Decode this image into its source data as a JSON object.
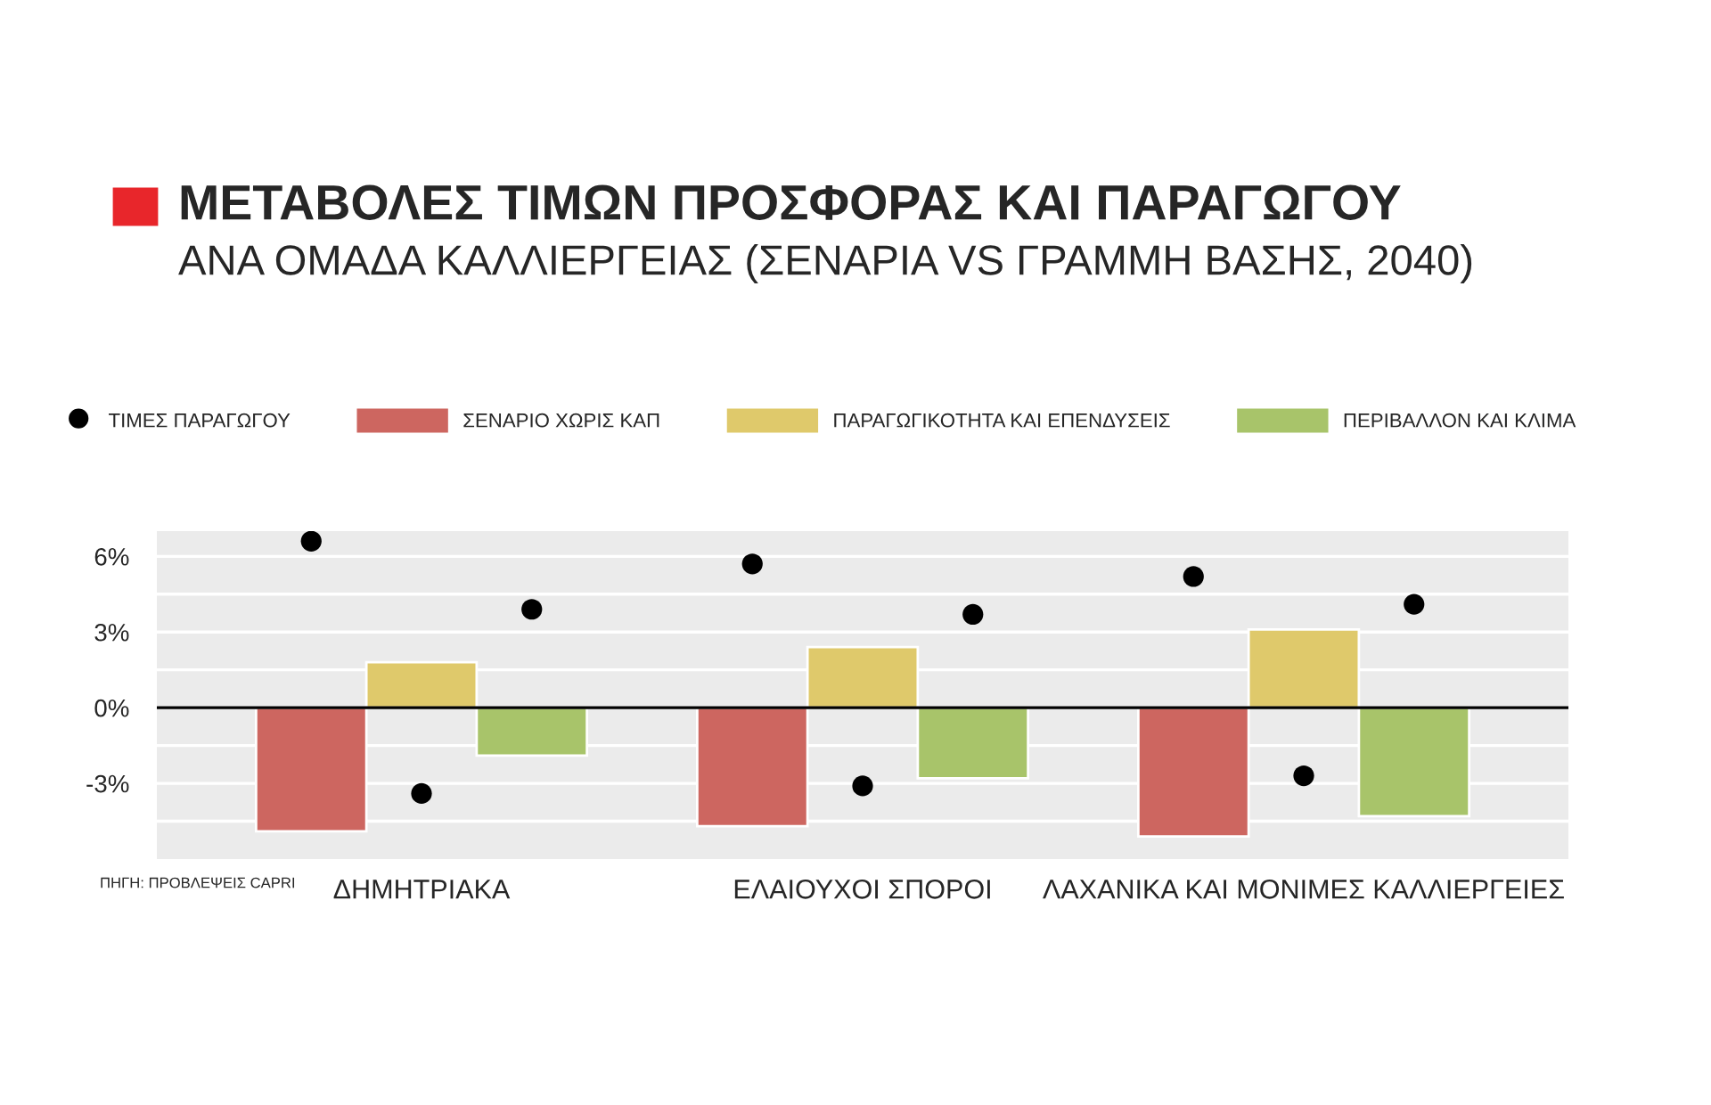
{
  "chart_data": {
    "type": "bar",
    "title": "ΜΕΤΑΒΟΛΕΣ ΤΙΜΩΝ ΠΡΟΣΦΟΡΑΣ ΚΑΙ ΠΑΡΑΓΩΓΟΥ",
    "subtitle": "ΑΝΑ ΟΜΑΔΑ ΚΑΛΛΙΕΡΓΕΙΑΣ (ΣΕΝΑΡΙΑ VS ΓΡΑΜΜΗ ΒΑΣΗΣ, 2040)",
    "categories": [
      "ΔΗΜΗΤΡΙΑΚΑ",
      "ΕΛΑΙΟΥΧΟΙ ΣΠΟΡΟΙ",
      "ΛΑΧΑΝΙΚΑ ΚΑΙ ΜΟΝΙΜΕΣ ΚΑΛΛΙΕΡΓΕΙΕΣ"
    ],
    "series": [
      {
        "name": "ΤΙΜΕΣ ΠΑΡΑΓΩΓΟΥ",
        "type": "scatter",
        "color": "#000000",
        "x": [
          "ΔΗΜΗΤΡΙΑΚΑ",
          "ΔΗΜΗΤΡΙΑΚΑ",
          "ΔΗΜΗΤΡΙΑΚΑ",
          "ΕΛΑΙΟΥΧΟΙ ΣΠΟΡΟΙ",
          "ΕΛΑΙΟΥΧΟΙ ΣΠΟΡΟΙ",
          "ΕΛΑΙΟΥΧΟΙ ΣΠΟΡΟΙ",
          "ΛΑΧΑΝΙΚΑ ΚΑΙ ΜΟΝΙΜΕΣ ΚΑΛΛΙΕΡΓΕΙΕΣ",
          "ΛΑΧΑΝΙΚΑ ΚΑΙ ΜΟΝΙΜΕΣ ΚΑΛΛΙΕΡΓΕΙΕΣ",
          "ΛΑΧΑΝΙΚΑ ΚΑΙ ΜΟΝΙΜΕΣ ΚΑΛΛΙΕΡΓΕΙΕΣ"
        ],
        "values": [
          6.6,
          -3.4,
          3.9,
          5.7,
          -3.1,
          3.7,
          5.2,
          -2.7,
          4.1
        ]
      },
      {
        "name": "ΣΕΝΑΡΙΟ ΧΩΡΙΣ ΚΑΠ",
        "color": "#cd6660",
        "values": [
          -4.9,
          -4.7,
          -5.1
        ]
      },
      {
        "name": "ΠΑΡΑΓΩΓΙΚΟΤΗΤΑ ΚΑΙ ΕΠΕΝΔΥΣΕΙΣ",
        "color": "#dfc96b",
        "values": [
          1.8,
          2.4,
          3.1
        ]
      },
      {
        "name": "ΠΕΡΙΒΑΛΛΟΝ ΚΑΙ ΚΛΙΜΑ",
        "color": "#a8c46a",
        "values": [
          -1.9,
          -2.8,
          -4.3
        ]
      }
    ],
    "ylim": [
      -6,
      7
    ],
    "yticks": [
      {
        "value": -4.5,
        "label": null
      },
      {
        "value": -3,
        "label": "-3%"
      },
      {
        "value": -1.5,
        "label": null
      },
      {
        "value": 0,
        "label": "0%"
      },
      {
        "value": 1.5,
        "label": null
      },
      {
        "value": 3,
        "label": "3%"
      },
      {
        "value": 4.5,
        "label": null
      },
      {
        "value": 6,
        "label": "6%"
      }
    ],
    "ref_lines": [
      {
        "axis": "y",
        "value": 0,
        "label": null,
        "color": "#000000"
      }
    ],
    "grid": "y",
    "legend": "top",
    "marker": "circle",
    "annotations": [
      "ΠΗΓΗ: ΠΡΟΒΛΕΨΕΙΣ CAPRI"
    ]
  }
}
